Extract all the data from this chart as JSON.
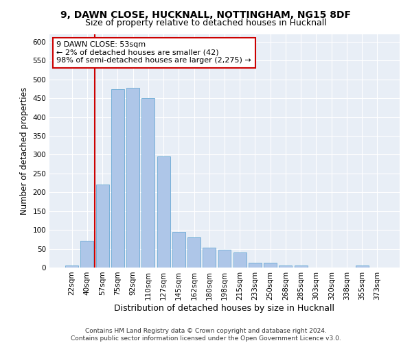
{
  "title1": "9, DAWN CLOSE, HUCKNALL, NOTTINGHAM, NG15 8DF",
  "title2": "Size of property relative to detached houses in Hucknall",
  "xlabel": "Distribution of detached houses by size in Hucknall",
  "ylabel": "Number of detached properties",
  "bar_labels": [
    "22sqm",
    "40sqm",
    "57sqm",
    "75sqm",
    "92sqm",
    "110sqm",
    "127sqm",
    "145sqm",
    "162sqm",
    "180sqm",
    "198sqm",
    "215sqm",
    "233sqm",
    "250sqm",
    "268sqm",
    "285sqm",
    "303sqm",
    "320sqm",
    "338sqm",
    "355sqm",
    "373sqm"
  ],
  "bar_heights": [
    5,
    72,
    220,
    475,
    478,
    450,
    295,
    95,
    80,
    53,
    47,
    40,
    13,
    12,
    5,
    5,
    0,
    0,
    0,
    5,
    0
  ],
  "bar_color": "#aec6e8",
  "bar_edge_color": "#6aaad4",
  "highlight_bar_index": 2,
  "highlight_color": "#cc0000",
  "annotation_text": "9 DAWN CLOSE: 53sqm\n← 2% of detached houses are smaller (42)\n98% of semi-detached houses are larger (2,275) →",
  "annotation_box_color": "#ffffff",
  "annotation_box_edge": "#cc0000",
  "ylim": [
    0,
    620
  ],
  "yticks": [
    0,
    50,
    100,
    150,
    200,
    250,
    300,
    350,
    400,
    450,
    500,
    550,
    600
  ],
  "background_color": "#e8eef6",
  "footer_text": "Contains HM Land Registry data © Crown copyright and database right 2024.\nContains public sector information licensed under the Open Government Licence v3.0.",
  "title1_fontsize": 10,
  "title2_fontsize": 9,
  "xlabel_fontsize": 9,
  "ylabel_fontsize": 8.5,
  "annotation_fontsize": 8,
  "tick_fontsize": 7.5,
  "footer_fontsize": 6.5
}
